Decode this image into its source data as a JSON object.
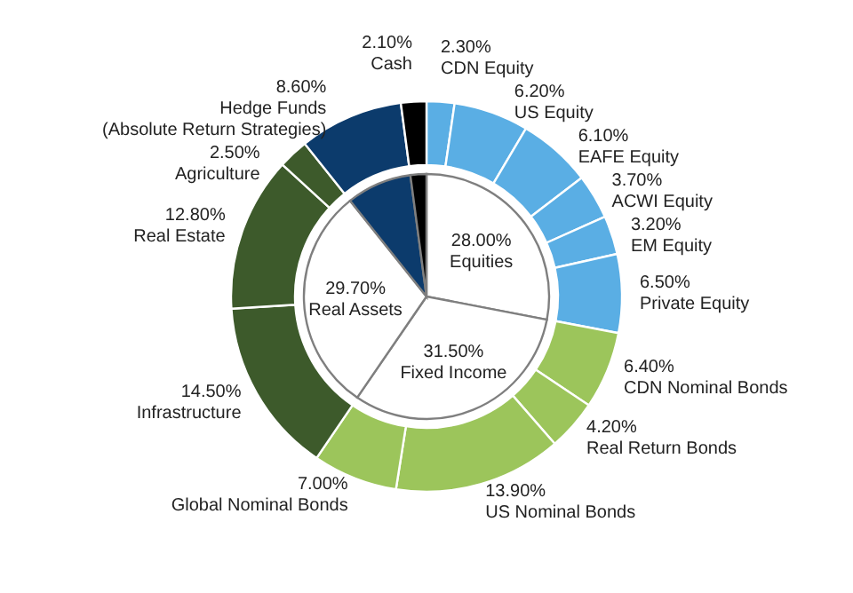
{
  "chart_data": [
    {
      "type": "donut",
      "categories": [
        "CDN Equity",
        "US Equity",
        "EAFE Equity",
        "ACWI Equity",
        "EM Equity",
        "Private Equity",
        "CDN Nominal Bonds",
        "Real Return Bonds",
        "US Nominal Bonds",
        "Global Nominal Bonds",
        "Infrastructure",
        "Real Estate",
        "Agriculture",
        "Hedge Funds\n(Absolute Return Strategies)",
        "Cash"
      ],
      "values": [
        2.3,
        6.2,
        6.1,
        3.7,
        3.2,
        6.5,
        6.4,
        4.2,
        13.9,
        7.0,
        14.5,
        12.8,
        2.5,
        8.6,
        2.1
      ],
      "colors": [
        "#5aaee4",
        "#5aaee4",
        "#5aaee4",
        "#5aaee4",
        "#5aaee4",
        "#5aaee4",
        "#9cc55b",
        "#9cc55b",
        "#9cc55b",
        "#9cc55b",
        "#3d5a2b",
        "#3d5a2b",
        "#3d5a2b",
        "#0c3b6c",
        "#000000"
      ],
      "value_labels": [
        "2.30%",
        "6.20%",
        "6.10%",
        "3.70%",
        "3.20%",
        "6.50%",
        "6.40%",
        "4.20%",
        "13.90%",
        "7.00%",
        "14.50%",
        "12.80%",
        "2.50%",
        "8.60%",
        "2.10%"
      ]
    },
    {
      "type": "pie",
      "categories": [
        "Equities",
        "Fixed Income",
        "Real Assets",
        null,
        null
      ],
      "values": [
        28.0,
        31.5,
        29.7,
        8.6,
        2.1
      ],
      "colors": [
        "#ffffff",
        "#ffffff",
        "#ffffff",
        "#0c3b6c",
        "#000000"
      ],
      "value_labels": [
        "28.00%",
        "31.50%",
        "29.70%",
        null,
        null
      ]
    }
  ]
}
